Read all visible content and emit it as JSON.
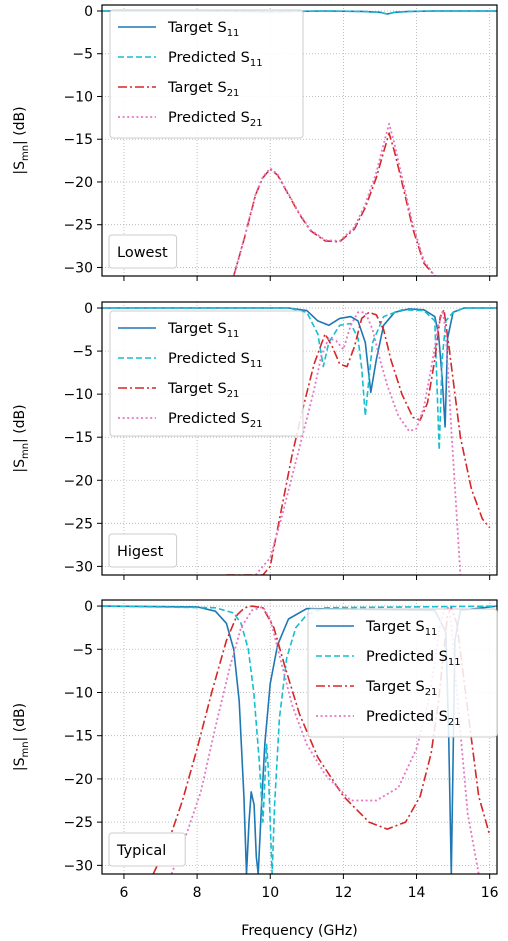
{
  "chart_data": [
    {
      "type": "line",
      "panel_label": "Lowest",
      "ylabel": "|S_mn| (dB)",
      "xlim": [
        5.4,
        16.2
      ],
      "ylim": [
        -31,
        0.7
      ],
      "xticks": [
        6,
        8,
        10,
        12,
        14,
        16
      ],
      "yticks": [
        0,
        -5,
        -10,
        -15,
        -20,
        -25,
        -30
      ],
      "grid": true,
      "legend_position": "top-left",
      "series": [
        {
          "name": "Target S11",
          "style": "solid",
          "color": "#1f77b4",
          "x": [
            5.4,
            8.0,
            9.5,
            10.0,
            10.5,
            11.5,
            12.5,
            13.0,
            13.2,
            13.4,
            13.8,
            14.5,
            16.2
          ],
          "y": [
            0,
            0,
            -0.05,
            -0.1,
            -0.05,
            0,
            -0.05,
            -0.15,
            -0.35,
            -0.15,
            -0.05,
            0,
            0
          ]
        },
        {
          "name": "Predicted S11",
          "style": "dashed",
          "color": "#17becf",
          "x": [
            5.4,
            8.0,
            9.5,
            10.0,
            10.5,
            11.5,
            12.5,
            13.0,
            13.2,
            13.4,
            13.8,
            14.5,
            16.2
          ],
          "y": [
            0,
            0,
            -0.05,
            -0.1,
            -0.05,
            0,
            -0.05,
            -0.15,
            -0.35,
            -0.15,
            -0.05,
            0,
            0
          ]
        },
        {
          "name": "Target S21",
          "style": "dashdot",
          "color": "#d62728",
          "x": [
            9.0,
            9.3,
            9.6,
            9.8,
            10.0,
            10.2,
            10.5,
            10.8,
            11.1,
            11.5,
            11.9,
            12.3,
            12.6,
            12.9,
            13.1,
            13.25,
            13.4,
            13.6,
            13.9,
            14.2,
            14.5
          ],
          "y": [
            -31,
            -26.5,
            -21.5,
            -19.5,
            -18.5,
            -19.2,
            -21.5,
            -23.8,
            -25.7,
            -26.9,
            -27.0,
            -25.5,
            -23.0,
            -19.5,
            -16.5,
            -14.3,
            -16.5,
            -20.0,
            -25.5,
            -29.5,
            -31
          ]
        },
        {
          "name": "Predicted S21",
          "style": "dotted",
          "color": "#e377c2",
          "x": [
            9.0,
            9.3,
            9.6,
            9.8,
            10.0,
            10.2,
            10.5,
            10.8,
            11.1,
            11.5,
            11.9,
            12.3,
            12.6,
            12.9,
            13.1,
            13.25,
            13.4,
            13.6,
            13.9,
            14.2,
            14.5
          ],
          "y": [
            -31,
            -26.4,
            -21.4,
            -19.4,
            -18.4,
            -19.1,
            -21.4,
            -23.7,
            -25.6,
            -26.8,
            -26.9,
            -25.3,
            -22.6,
            -18.9,
            -15.6,
            -13.2,
            -15.6,
            -19.4,
            -25.0,
            -29.2,
            -31
          ]
        }
      ]
    },
    {
      "type": "line",
      "panel_label": "Higest",
      "ylabel": "|S_mn| (dB)",
      "xlim": [
        5.4,
        16.2
      ],
      "ylim": [
        -31,
        0.7
      ],
      "xticks": [
        6,
        8,
        10,
        12,
        14,
        16
      ],
      "yticks": [
        0,
        -5,
        -10,
        -15,
        -20,
        -25,
        -30
      ],
      "grid": true,
      "legend_position": "top-left",
      "series": [
        {
          "name": "Target S11",
          "style": "solid",
          "color": "#1f77b4",
          "x": [
            5.4,
            10.5,
            11.0,
            11.3,
            11.6,
            11.9,
            12.2,
            12.4,
            12.6,
            12.75,
            12.9,
            13.1,
            13.4,
            13.8,
            14.2,
            14.5,
            14.6,
            14.7,
            14.78,
            14.85,
            15.0,
            15.3,
            16.2
          ],
          "y": [
            0,
            0,
            -0.3,
            -1.5,
            -2.0,
            -1.2,
            -1.0,
            -1.5,
            -4.0,
            -9.8,
            -6.0,
            -2.0,
            -0.5,
            -0.1,
            -0.2,
            -1.0,
            -3.0,
            -8.0,
            -13.8,
            -3.5,
            -0.5,
            0,
            0
          ]
        },
        {
          "name": "Predicted S11",
          "style": "dashed",
          "color": "#17becf",
          "x": [
            5.4,
            10.5,
            11.0,
            11.3,
            11.45,
            11.6,
            11.9,
            12.2,
            12.4,
            12.5,
            12.6,
            12.8,
            13.1,
            13.6,
            14.2,
            14.5,
            14.62,
            14.7,
            14.8,
            15.0,
            15.3,
            16.2
          ],
          "y": [
            0,
            0,
            -0.5,
            -3.0,
            -6.8,
            -4.0,
            -2.0,
            -1.8,
            -3.5,
            -7.0,
            -12.5,
            -4.0,
            -1.0,
            -0.2,
            -0.3,
            -1.5,
            -16.5,
            -6.0,
            -1.5,
            -0.5,
            0,
            0
          ]
        },
        {
          "name": "Target S21",
          "style": "dashdot",
          "color": "#d62728",
          "x": [
            8.8,
            9.4,
            9.8,
            10.0,
            10.3,
            10.6,
            10.9,
            11.2,
            11.5,
            11.7,
            11.9,
            12.1,
            12.3,
            12.5,
            12.7,
            12.9,
            13.1,
            13.3,
            13.6,
            13.9,
            14.1,
            14.3,
            14.5,
            14.65,
            14.75,
            14.9,
            15.2,
            15.5,
            15.8,
            16.0
          ],
          "y": [
            -31,
            -31,
            -31,
            -30.0,
            -23.5,
            -17.0,
            -11.5,
            -6.5,
            -3.0,
            -4.5,
            -6.5,
            -6.8,
            -4.5,
            -1.2,
            -0.5,
            -0.8,
            -2.5,
            -6.0,
            -10.0,
            -12.7,
            -13.0,
            -11.0,
            -6.0,
            -1.0,
            -0.2,
            -5.0,
            -15.0,
            -21.0,
            -24.5,
            -25.5
          ]
        },
        {
          "name": "Predicted S21",
          "style": "dotted",
          "color": "#e377c2",
          "x": [
            9.6,
            10.0,
            10.3,
            10.6,
            10.9,
            11.2,
            11.4,
            11.6,
            11.8,
            12.0,
            12.2,
            12.4,
            12.6,
            12.8,
            13.0,
            13.2,
            13.5,
            13.8,
            14.0,
            14.2,
            14.4,
            14.6,
            14.72,
            14.8,
            14.95,
            15.2
          ],
          "y": [
            -31,
            -29.0,
            -24.5,
            -19.5,
            -14.5,
            -9.5,
            -5.5,
            -3.5,
            -3.8,
            -4.8,
            -2.0,
            -0.5,
            -0.5,
            -2.5,
            -6.0,
            -9.0,
            -12.5,
            -14.3,
            -14.0,
            -11.5,
            -7.0,
            -2.0,
            -0.3,
            -3.0,
            -14.0,
            -31
          ]
        }
      ]
    },
    {
      "type": "line",
      "panel_label": "Typical",
      "ylabel": "|S_mn| (dB)",
      "xlabel": "Frequency (GHz)",
      "xlim": [
        5.4,
        16.2
      ],
      "ylim": [
        -31,
        0.7
      ],
      "xticks": [
        6,
        8,
        10,
        12,
        14,
        16
      ],
      "yticks": [
        0,
        -5,
        -10,
        -15,
        -20,
        -25,
        -30
      ],
      "grid": true,
      "legend_position": "top-right",
      "series": [
        {
          "name": "Target S11",
          "style": "solid",
          "color": "#1f77b4",
          "x": [
            5.4,
            8.0,
            8.5,
            8.8,
            9.0,
            9.15,
            9.28,
            9.35,
            9.42,
            9.48,
            9.56,
            9.62,
            9.67,
            9.75,
            9.85,
            10.0,
            10.2,
            10.5,
            11.0,
            14.5,
            14.8,
            14.88,
            14.95,
            15.05,
            15.2,
            16.2
          ],
          "y": [
            0,
            -0.1,
            -0.6,
            -2.0,
            -5.0,
            -11.0,
            -22.0,
            -31,
            -25.0,
            -21.5,
            -23.0,
            -29.0,
            -31,
            -24.0,
            -16.0,
            -9.0,
            -4.5,
            -1.5,
            -0.3,
            -0.5,
            -3.0,
            -15.0,
            -31,
            -4.0,
            -0.5,
            0
          ]
        },
        {
          "name": "Predicted S11",
          "style": "dashed",
          "color": "#17becf",
          "x": [
            5.4,
            8.5,
            9.0,
            9.2,
            9.4,
            9.55,
            9.7,
            9.8,
            9.9,
            9.95,
            10.0,
            10.05,
            10.12,
            10.25,
            10.45,
            10.7,
            11.0,
            11.5,
            16.2
          ],
          "y": [
            0,
            -0.2,
            -0.8,
            -2.0,
            -5.0,
            -10.0,
            -18.0,
            -25.0,
            -16.0,
            -19.0,
            -25.0,
            -31,
            -23.0,
            -13.0,
            -6.0,
            -2.5,
            -1.0,
            -0.2,
            0
          ]
        },
        {
          "name": "Target S21",
          "style": "dashdot",
          "color": "#d62728",
          "x": [
            6.8,
            7.2,
            7.6,
            8.0,
            8.4,
            8.8,
            9.1,
            9.3,
            9.5,
            9.8,
            10.1,
            10.4,
            10.8,
            11.3,
            12.0,
            12.7,
            13.2,
            13.7,
            14.1,
            14.4,
            14.6,
            14.75,
            14.85,
            14.95,
            15.1,
            15.4,
            15.7,
            16.0
          ],
          "y": [
            -31,
            -27.5,
            -22.5,
            -16.5,
            -10.0,
            -4.0,
            -1.0,
            -0.2,
            0,
            -0.2,
            -2.5,
            -7.0,
            -12.5,
            -17.5,
            -22.0,
            -25.0,
            -25.8,
            -25.0,
            -22.0,
            -17.0,
            -11.0,
            -5.0,
            -1.0,
            -0.2,
            -2.0,
            -12.0,
            -22.0,
            -26.5
          ]
        },
        {
          "name": "Predicted S21",
          "style": "dotted",
          "color": "#e377c2",
          "x": [
            7.3,
            7.7,
            8.1,
            8.5,
            8.9,
            9.2,
            9.5,
            9.8,
            10.0,
            10.3,
            10.6,
            11.0,
            11.5,
            12.2,
            12.9,
            13.5,
            14.0,
            14.3,
            14.5,
            14.65,
            14.75,
            14.85,
            14.95,
            15.1,
            15.4,
            15.7
          ],
          "y": [
            -31,
            -26.5,
            -21.5,
            -14.0,
            -7.0,
            -2.5,
            -0.5,
            -0.1,
            -1.5,
            -6.5,
            -11.5,
            -16.0,
            -19.5,
            -22.5,
            -22.5,
            -21.0,
            -16.5,
            -11.5,
            -6.5,
            -2.0,
            -0.5,
            -0.1,
            -2.0,
            -10.0,
            -24.0,
            -31
          ]
        }
      ]
    }
  ]
}
